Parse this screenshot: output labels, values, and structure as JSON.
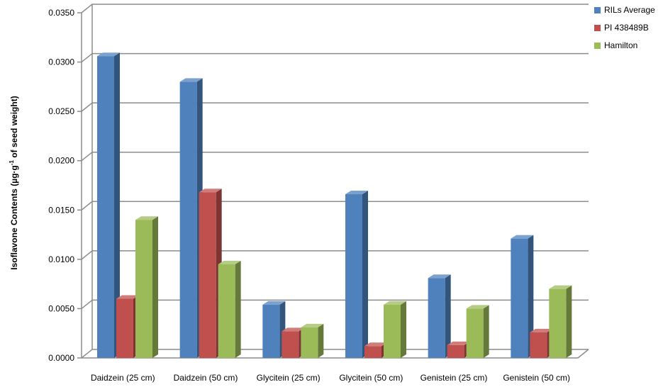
{
  "chart_data": {
    "type": "bar",
    "categories": [
      "Daidzein (25 cm)",
      "Daidzein (50 cm)",
      "Glycitein (25 cm)",
      "Glycitein (50 cm)",
      "Genistein (25 cm)",
      "Genistein (50 cm)"
    ],
    "series": [
      {
        "name": "RILs Average",
        "color": "#4f81bd",
        "values": [
          0.0306,
          0.028,
          0.0054,
          0.0166,
          0.0081,
          0.0121
        ]
      },
      {
        "name": "PI 438489B",
        "color": "#c0504d",
        "values": [
          0.006,
          0.0168,
          0.0027,
          0.0012,
          0.0013,
          0.0026
        ]
      },
      {
        "name": "Hamilton",
        "color": "#9bbb59",
        "values": [
          0.014,
          0.0095,
          0.0031,
          0.0054,
          0.005,
          0.007
        ]
      }
    ],
    "ylabel_main": "Isoflavone Contents (µg·g",
    "ylabel_sup": "-1",
    "ylabel_tail": " of seed weight)",
    "ylim": [
      0,
      0.035
    ],
    "yticks": [
      "0.0000",
      "0.0050",
      "0.0100",
      "0.0150",
      "0.0200",
      "0.0250",
      "0.0300",
      "0.0350"
    ],
    "grid": true,
    "legend_position": "top-right"
  }
}
